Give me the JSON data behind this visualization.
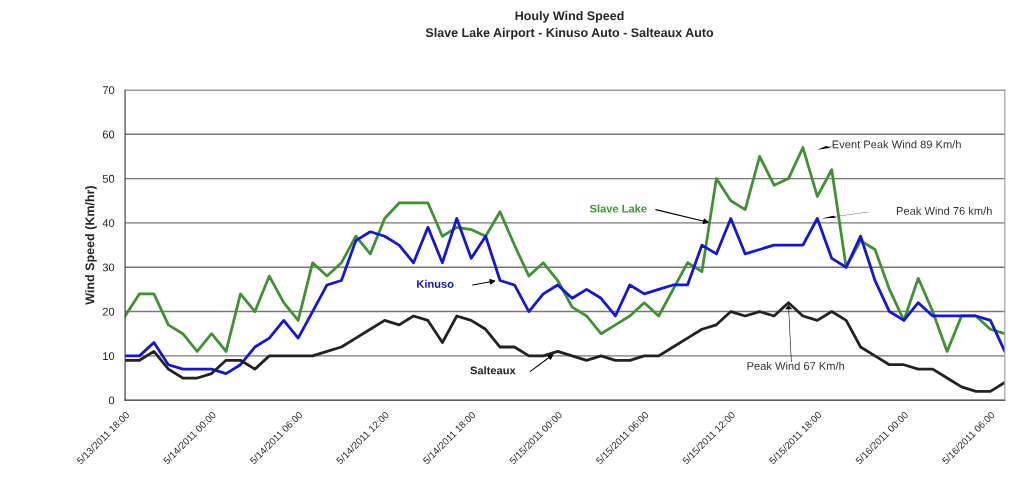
{
  "chart_data": {
    "type": "line",
    "title": "Houly Wind Speed",
    "subtitle": "Slave Lake Airport - Kinuso Auto - Salteaux Auto",
    "ylabel": "Wind Speed (Km/hr)",
    "categories": [
      "5/13/2011 18:00",
      null,
      null,
      null,
      null,
      null,
      "5/14/2011 00:00",
      null,
      null,
      null,
      null,
      null,
      "5/14/2011 06:00",
      null,
      null,
      null,
      null,
      null,
      "5/14/2011 12:00",
      null,
      null,
      null,
      null,
      null,
      "5/14/2011 18:00",
      null,
      null,
      null,
      null,
      null,
      "5/15/2011 00:00",
      null,
      null,
      null,
      null,
      null,
      "5/15/2011 06:00",
      null,
      null,
      null,
      null,
      null,
      "5/15/2011 12:00",
      null,
      null,
      null,
      null,
      null,
      "5/15/2011 18:00",
      null,
      null,
      null,
      null,
      null,
      "5/16/2011 00:00",
      null,
      null,
      null,
      null,
      null,
      "5/16/2011 06:00",
      null
    ],
    "series": [
      {
        "name": "Slave Lake",
        "color": "#3f9132",
        "values": [
          19,
          24,
          24,
          17,
          15,
          11,
          15,
          11,
          24,
          20,
          28,
          22,
          18,
          31,
          28,
          31,
          37,
          33,
          41,
          44.5,
          44.5,
          44.5,
          37,
          39,
          38.5,
          37,
          42.5,
          35,
          28,
          31,
          27,
          21,
          19,
          15,
          17,
          19,
          22,
          19,
          25,
          31,
          29,
          50,
          45,
          43,
          55,
          48.5,
          50,
          57,
          46,
          52,
          30,
          36,
          34,
          25,
          18,
          27.5,
          20,
          11,
          19,
          19,
          16,
          15
        ]
      },
      {
        "name": "Kinuso",
        "color": "#1414dc",
        "values": [
          10,
          10,
          13,
          8,
          7,
          7,
          7,
          6,
          8,
          12,
          14,
          18,
          14,
          20,
          26,
          27,
          36,
          38,
          37,
          35,
          31,
          39,
          31,
          41,
          32,
          37,
          27,
          26,
          20,
          24,
          26,
          23,
          25,
          23,
          19,
          26,
          24,
          25,
          26,
          26,
          35,
          33,
          41,
          33,
          34,
          35,
          35,
          35,
          41,
          32,
          30,
          37,
          27,
          20,
          18,
          22,
          19,
          19,
          19,
          19,
          18,
          11
        ]
      },
      {
        "name": "Salteaux",
        "color": "#222222",
        "values": [
          9,
          9,
          11,
          7,
          5,
          5,
          6,
          9,
          9,
          7,
          10,
          10,
          10,
          10,
          11,
          12,
          14,
          16,
          18,
          17,
          19,
          18,
          13,
          19,
          18,
          16,
          12,
          12,
          10,
          10,
          11,
          10,
          9,
          10,
          9,
          9,
          10,
          10,
          12,
          14,
          16,
          17,
          20,
          19,
          20,
          19,
          22,
          19,
          18,
          20,
          18,
          12,
          10,
          8,
          8,
          7,
          7,
          5,
          3,
          2,
          2,
          4
        ]
      }
    ],
    "ylim": [
      0,
      70
    ],
    "yticks": [
      0,
      10,
      20,
      30,
      40,
      50,
      60,
      70
    ],
    "annotations": [
      "Event Peak Wind 89 Km/h",
      "Peak Wind 76 km/h",
      "Peak Wind 67 Km/h"
    ],
    "grid": "y",
    "legend": false,
    "marker": "none",
    "line_style": "solid"
  }
}
